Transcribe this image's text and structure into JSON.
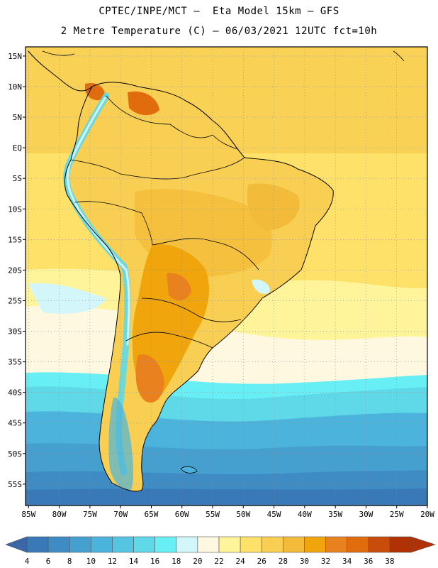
{
  "header": {
    "title_line1": "CPTEC/INPE/MCT –  Eta Model 15km – GFS",
    "title_line2": "2 Metre Temperature (C) – 06/03/2021 12UTC fct=10h"
  },
  "map": {
    "lat_labels": [
      "15N",
      "10N",
      "5N",
      "EQ",
      "5S",
      "10S",
      "15S",
      "20S",
      "25S",
      "30S",
      "35S",
      "40S",
      "45S",
      "50S",
      "55S"
    ],
    "lon_labels": [
      "85W",
      "80W",
      "75W",
      "70W",
      "65W",
      "60W",
      "55W",
      "50W",
      "45W",
      "40W",
      "35W",
      "30W",
      "25W",
      "20W"
    ],
    "lat_values": [
      15,
      10,
      5,
      0,
      -5,
      -10,
      -15,
      -20,
      -25,
      -30,
      -35,
      -40,
      -45,
      -50,
      -55
    ],
    "lon_values": [
      -85,
      -80,
      -75,
      -70,
      -65,
      -60,
      -55,
      -50,
      -45,
      -40,
      -35,
      -30,
      -25,
      -20
    ],
    "extent": {
      "lon_min": -85.5,
      "lon_max": -20,
      "lat_min": -58.5,
      "lat_max": 16.5
    }
  },
  "colorbar": {
    "labels": [
      "4",
      "6",
      "8",
      "10",
      "12",
      "14",
      "16",
      "18",
      "20",
      "22",
      "24",
      "26",
      "28",
      "30",
      "32",
      "34",
      "36",
      "38"
    ],
    "colors": [
      "#3a79b8",
      "#3f8cc4",
      "#45a0d0",
      "#4cb3dc",
      "#56c5e2",
      "#5fd8e8",
      "#67eff5",
      "#d3f6fb",
      "#fff8e0",
      "#fff49a",
      "#fde168",
      "#f8cf52",
      "#f2bc3a",
      "#f0a50c",
      "#e9811f",
      "#e06c0e",
      "#c84c0a",
      "#b03204"
    ],
    "low_color": "#3b66a8",
    "high_color": "#b03204"
  }
}
